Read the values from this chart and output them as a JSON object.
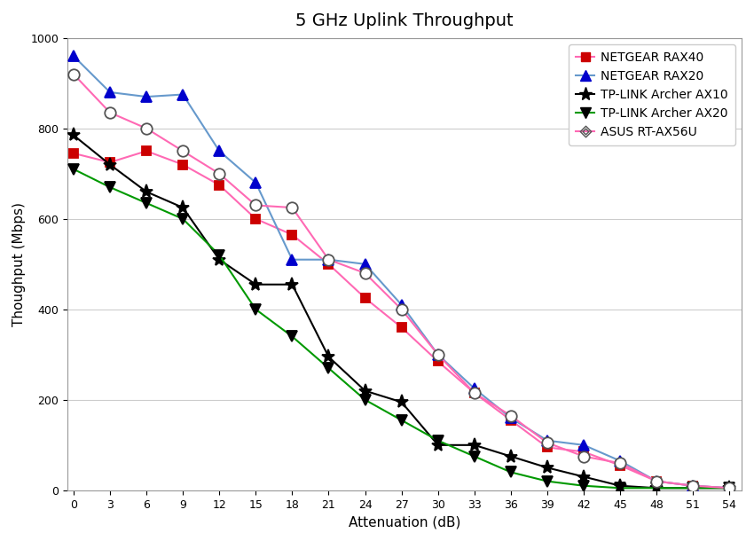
{
  "title": "5 GHz Uplink Throughput",
  "xlabel": "Attenuation (dB)",
  "ylabel": "Thoughput (Mbps)",
  "x_ticks": [
    0,
    3,
    6,
    9,
    12,
    15,
    18,
    21,
    24,
    27,
    30,
    33,
    36,
    39,
    42,
    45,
    48,
    51,
    54
  ],
  "ylim": [
    0,
    1000
  ],
  "xlim": [
    -0.5,
    55
  ],
  "series": [
    {
      "label": "NETGEAR RAX40",
      "line_color": "#ff69b4",
      "marker": "s",
      "markersize": 7,
      "mfc": "#cc0000",
      "mec": "#cc0000",
      "lw": 1.5,
      "x": [
        0,
        3,
        6,
        9,
        12,
        15,
        18,
        21,
        24,
        27,
        30,
        33,
        36,
        39,
        42,
        45,
        48,
        51,
        54
      ],
      "y": [
        745,
        725,
        750,
        720,
        675,
        600,
        565,
        500,
        425,
        360,
        285,
        215,
        155,
        95,
        85,
        55,
        20,
        10,
        5
      ]
    },
    {
      "label": "NETGEAR RAX20",
      "line_color": "#6699cc",
      "marker": "^",
      "markersize": 9,
      "mfc": "#0000cc",
      "mec": "#0000cc",
      "lw": 1.5,
      "x": [
        0,
        3,
        6,
        9,
        12,
        15,
        18,
        21,
        24,
        27,
        30,
        33,
        36,
        39,
        42,
        45,
        48,
        51,
        54
      ],
      "y": [
        960,
        880,
        870,
        875,
        750,
        680,
        510,
        510,
        500,
        410,
        300,
        225,
        160,
        110,
        100,
        65,
        20,
        10,
        5
      ]
    },
    {
      "label": "TP-LINK Archer AX10",
      "line_color": "#000000",
      "marker": "*",
      "markersize": 11,
      "mfc": "#000000",
      "mec": "#000000",
      "lw": 1.5,
      "x": [
        0,
        3,
        6,
        9,
        12,
        15,
        18,
        21,
        24,
        27,
        30,
        33,
        36,
        39,
        42,
        45,
        48,
        51,
        54
      ],
      "y": [
        785,
        720,
        660,
        625,
        510,
        455,
        455,
        295,
        220,
        195,
        100,
        100,
        75,
        50,
        30,
        10,
        5,
        5,
        5
      ]
    },
    {
      "label": "TP-LINK Archer AX20",
      "line_color": "#009900",
      "marker": "v",
      "markersize": 9,
      "mfc": "#000000",
      "mec": "#000000",
      "lw": 1.5,
      "x": [
        0,
        3,
        6,
        9,
        12,
        15,
        18,
        21,
        24,
        27,
        30,
        33,
        36,
        39,
        42,
        45,
        48,
        51,
        54
      ],
      "y": [
        710,
        670,
        635,
        600,
        520,
        400,
        340,
        270,
        200,
        155,
        110,
        75,
        40,
        20,
        10,
        5,
        5,
        5,
        5
      ]
    },
    {
      "label": "ASUS RT-AX56U",
      "line_color": "#ff69b4",
      "marker": "o",
      "markersize": 9,
      "mfc": "white",
      "mec": "#555555",
      "lw": 1.5,
      "x": [
        0,
        3,
        6,
        9,
        12,
        15,
        18,
        21,
        24,
        27,
        30,
        33,
        36,
        39,
        42,
        45,
        48,
        51,
        54
      ],
      "y": [
        920,
        835,
        800,
        750,
        700,
        630,
        625,
        510,
        480,
        400,
        300,
        215,
        165,
        105,
        75,
        60,
        20,
        10,
        5
      ]
    }
  ],
  "legend_loc": "upper right",
  "background_color": "#ffffff",
  "grid_color": "#cccccc"
}
